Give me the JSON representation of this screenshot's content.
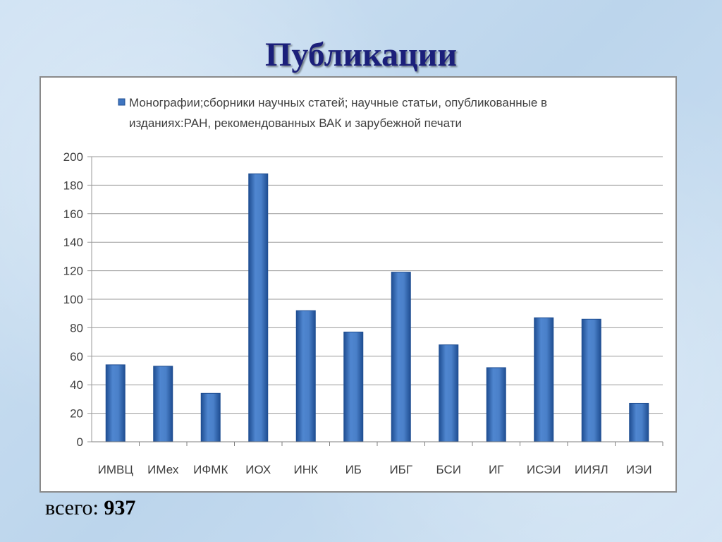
{
  "slide": {
    "title": "Публикации",
    "total_label": "всего:",
    "total_value": "937"
  },
  "colors": {
    "bar": "#3f75c0",
    "bar_dark": "#1f4e92",
    "grid": "#9a9a9a"
  },
  "chart_data": {
    "type": "bar",
    "legend": {
      "series_name_line1": "Монографии;сборники научных статей; научные статьи, опубликованные в",
      "series_name_line2": "изданиях:РАН, рекомендованных ВАК и зарубежной печати",
      "position": "top"
    },
    "categories": [
      "ИМВЦ",
      "ИМех",
      "ИФМК",
      "ИОХ",
      "ИНК",
      "ИБ",
      "ИБГ",
      "БСИ",
      "ИГ",
      "ИСЭИ",
      "ИИЯЛ",
      "ИЭИ"
    ],
    "series": [
      {
        "name": "Монографии;сборники научных статей; научные статьи, опубликованные в изданиях:РАН, рекомендованных ВАК и зарубежной печати",
        "values": [
          54,
          53,
          34,
          188,
          92,
          77,
          119,
          68,
          52,
          87,
          86,
          27
        ]
      }
    ],
    "ylim": [
      0,
      200
    ],
    "yticks": [
      0,
      20,
      40,
      60,
      80,
      100,
      120,
      140,
      160,
      180,
      200
    ],
    "grid": true
  }
}
